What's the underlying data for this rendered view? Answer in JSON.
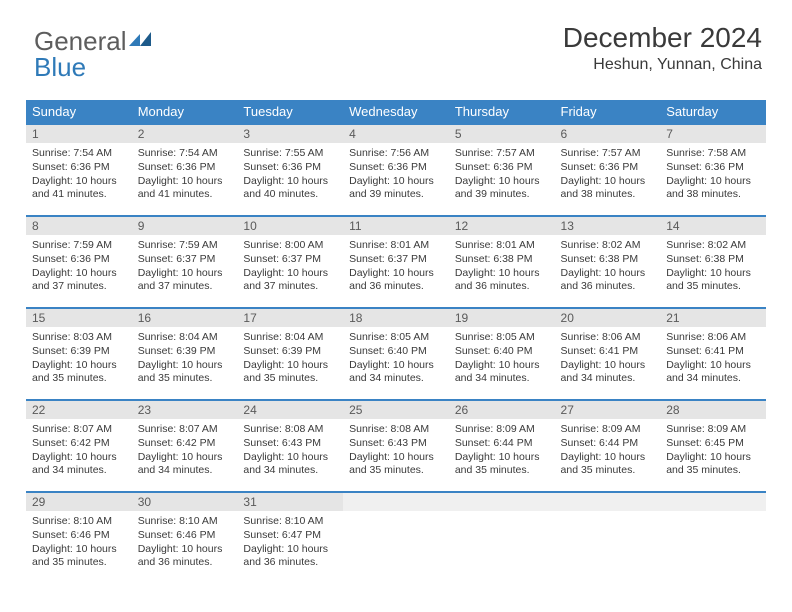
{
  "logo": {
    "part1": "General",
    "part2": "Blue"
  },
  "header": {
    "month_title": "December 2024",
    "location": "Heshun, Yunnan, China"
  },
  "colors": {
    "header_bg": "#3a83c4",
    "header_text": "#ffffff",
    "daynum_bg": "#e5e5e5",
    "rule": "#3a83c4",
    "text": "#3a3a3a",
    "logo_gray": "#5d5d5d",
    "logo_blue": "#2f7ab8"
  },
  "fonts": {
    "month_title_pt": 21,
    "location_pt": 12,
    "weekday_pt": 10,
    "body_pt": 8,
    "logo_pt": 20
  },
  "weekdays": [
    "Sunday",
    "Monday",
    "Tuesday",
    "Wednesday",
    "Thursday",
    "Friday",
    "Saturday"
  ],
  "days": [
    {
      "n": "1",
      "sr": "7:54 AM",
      "ss": "6:36 PM",
      "dl": "10 hours and 41 minutes."
    },
    {
      "n": "2",
      "sr": "7:54 AM",
      "ss": "6:36 PM",
      "dl": "10 hours and 41 minutes."
    },
    {
      "n": "3",
      "sr": "7:55 AM",
      "ss": "6:36 PM",
      "dl": "10 hours and 40 minutes."
    },
    {
      "n": "4",
      "sr": "7:56 AM",
      "ss": "6:36 PM",
      "dl": "10 hours and 39 minutes."
    },
    {
      "n": "5",
      "sr": "7:57 AM",
      "ss": "6:36 PM",
      "dl": "10 hours and 39 minutes."
    },
    {
      "n": "6",
      "sr": "7:57 AM",
      "ss": "6:36 PM",
      "dl": "10 hours and 38 minutes."
    },
    {
      "n": "7",
      "sr": "7:58 AM",
      "ss": "6:36 PM",
      "dl": "10 hours and 38 minutes."
    },
    {
      "n": "8",
      "sr": "7:59 AM",
      "ss": "6:36 PM",
      "dl": "10 hours and 37 minutes."
    },
    {
      "n": "9",
      "sr": "7:59 AM",
      "ss": "6:37 PM",
      "dl": "10 hours and 37 minutes."
    },
    {
      "n": "10",
      "sr": "8:00 AM",
      "ss": "6:37 PM",
      "dl": "10 hours and 37 minutes."
    },
    {
      "n": "11",
      "sr": "8:01 AM",
      "ss": "6:37 PM",
      "dl": "10 hours and 36 minutes."
    },
    {
      "n": "12",
      "sr": "8:01 AM",
      "ss": "6:38 PM",
      "dl": "10 hours and 36 minutes."
    },
    {
      "n": "13",
      "sr": "8:02 AM",
      "ss": "6:38 PM",
      "dl": "10 hours and 36 minutes."
    },
    {
      "n": "14",
      "sr": "8:02 AM",
      "ss": "6:38 PM",
      "dl": "10 hours and 35 minutes."
    },
    {
      "n": "15",
      "sr": "8:03 AM",
      "ss": "6:39 PM",
      "dl": "10 hours and 35 minutes."
    },
    {
      "n": "16",
      "sr": "8:04 AM",
      "ss": "6:39 PM",
      "dl": "10 hours and 35 minutes."
    },
    {
      "n": "17",
      "sr": "8:04 AM",
      "ss": "6:39 PM",
      "dl": "10 hours and 35 minutes."
    },
    {
      "n": "18",
      "sr": "8:05 AM",
      "ss": "6:40 PM",
      "dl": "10 hours and 34 minutes."
    },
    {
      "n": "19",
      "sr": "8:05 AM",
      "ss": "6:40 PM",
      "dl": "10 hours and 34 minutes."
    },
    {
      "n": "20",
      "sr": "8:06 AM",
      "ss": "6:41 PM",
      "dl": "10 hours and 34 minutes."
    },
    {
      "n": "21",
      "sr": "8:06 AM",
      "ss": "6:41 PM",
      "dl": "10 hours and 34 minutes."
    },
    {
      "n": "22",
      "sr": "8:07 AM",
      "ss": "6:42 PM",
      "dl": "10 hours and 34 minutes."
    },
    {
      "n": "23",
      "sr": "8:07 AM",
      "ss": "6:42 PM",
      "dl": "10 hours and 34 minutes."
    },
    {
      "n": "24",
      "sr": "8:08 AM",
      "ss": "6:43 PM",
      "dl": "10 hours and 34 minutes."
    },
    {
      "n": "25",
      "sr": "8:08 AM",
      "ss": "6:43 PM",
      "dl": "10 hours and 35 minutes."
    },
    {
      "n": "26",
      "sr": "8:09 AM",
      "ss": "6:44 PM",
      "dl": "10 hours and 35 minutes."
    },
    {
      "n": "27",
      "sr": "8:09 AM",
      "ss": "6:44 PM",
      "dl": "10 hours and 35 minutes."
    },
    {
      "n": "28",
      "sr": "8:09 AM",
      "ss": "6:45 PM",
      "dl": "10 hours and 35 minutes."
    },
    {
      "n": "29",
      "sr": "8:10 AM",
      "ss": "6:46 PM",
      "dl": "10 hours and 35 minutes."
    },
    {
      "n": "30",
      "sr": "8:10 AM",
      "ss": "6:46 PM",
      "dl": "10 hours and 36 minutes."
    },
    {
      "n": "31",
      "sr": "8:10 AM",
      "ss": "6:47 PM",
      "dl": "10 hours and 36 minutes."
    }
  ],
  "labels": {
    "sunrise": "Sunrise:",
    "sunset": "Sunset:",
    "daylight": "Daylight:"
  },
  "layout": {
    "start_weekday": 0,
    "total_cells": 35
  }
}
